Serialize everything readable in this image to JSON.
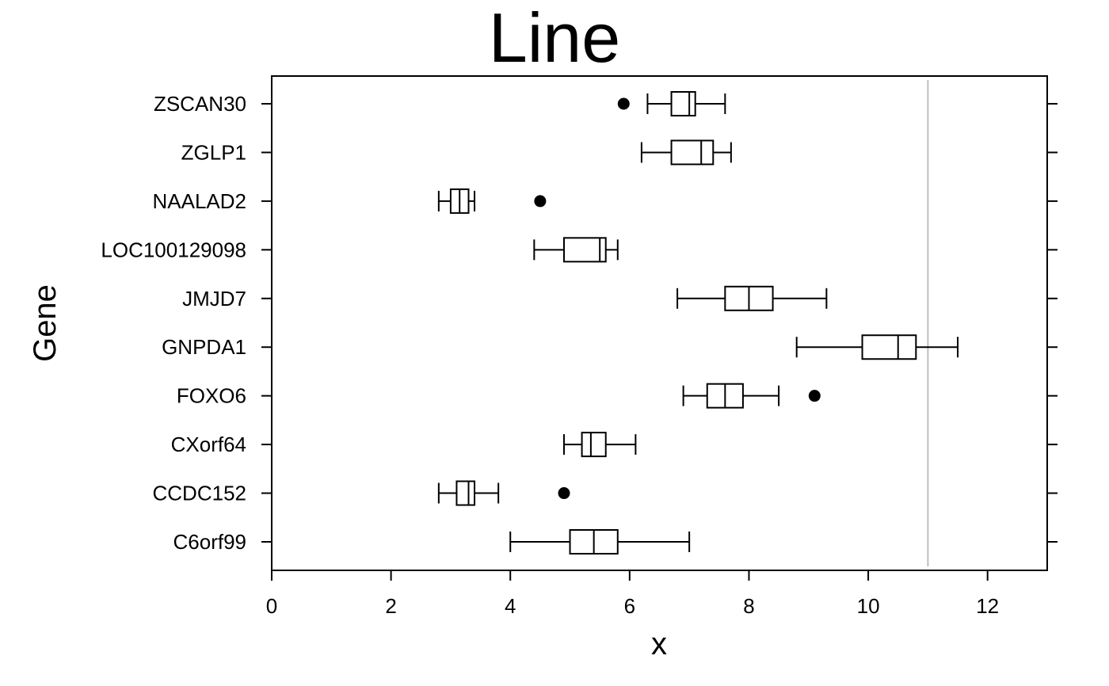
{
  "chart_data": {
    "type": "boxplot",
    "title": "Line",
    "xlabel": "x",
    "ylabel": "Gene",
    "xlim": [
      0,
      13
    ],
    "x_ticks": [
      0,
      2,
      4,
      6,
      8,
      10,
      12
    ],
    "reference_line_x": 11,
    "colors": {
      "box": "#000000",
      "reference_line": "#bdbdbd"
    },
    "categories": [
      "C6orf99",
      "CCDC152",
      "CXorf64",
      "FOXO6",
      "GNPDA1",
      "JMJD7",
      "LOC100129098",
      "NAALAD2",
      "ZGLP1",
      "ZSCAN30"
    ],
    "boxes": [
      {
        "gene": "C6orf99",
        "min": 4.0,
        "q1": 5.0,
        "median": 5.4,
        "q3": 5.8,
        "max": 7.0,
        "outliers": []
      },
      {
        "gene": "CCDC152",
        "min": 2.8,
        "q1": 3.1,
        "median": 3.3,
        "q3": 3.4,
        "max": 3.8,
        "outliers": [
          4.9
        ]
      },
      {
        "gene": "CXorf64",
        "min": 4.9,
        "q1": 5.2,
        "median": 5.35,
        "q3": 5.6,
        "max": 6.1,
        "outliers": []
      },
      {
        "gene": "FOXO6",
        "min": 6.9,
        "q1": 7.3,
        "median": 7.6,
        "q3": 7.9,
        "max": 8.5,
        "outliers": [
          9.1
        ]
      },
      {
        "gene": "GNPDA1",
        "min": 8.8,
        "q1": 9.9,
        "median": 10.5,
        "q3": 10.8,
        "max": 11.5,
        "outliers": []
      },
      {
        "gene": "JMJD7",
        "min": 6.8,
        "q1": 7.6,
        "median": 8.0,
        "q3": 8.4,
        "max": 9.3,
        "outliers": []
      },
      {
        "gene": "LOC100129098",
        "min": 4.4,
        "q1": 4.9,
        "median": 5.5,
        "q3": 5.6,
        "max": 5.8,
        "outliers": []
      },
      {
        "gene": "NAALAD2",
        "min": 2.8,
        "q1": 3.0,
        "median": 3.15,
        "q3": 3.3,
        "max": 3.4,
        "outliers": [
          4.5
        ]
      },
      {
        "gene": "ZGLP1",
        "min": 6.2,
        "q1": 6.7,
        "median": 7.2,
        "q3": 7.4,
        "max": 7.7,
        "outliers": []
      },
      {
        "gene": "ZSCAN30",
        "min": 6.3,
        "q1": 6.7,
        "median": 7.0,
        "q3": 7.1,
        "max": 7.6,
        "outliers": [
          5.9
        ]
      }
    ]
  }
}
